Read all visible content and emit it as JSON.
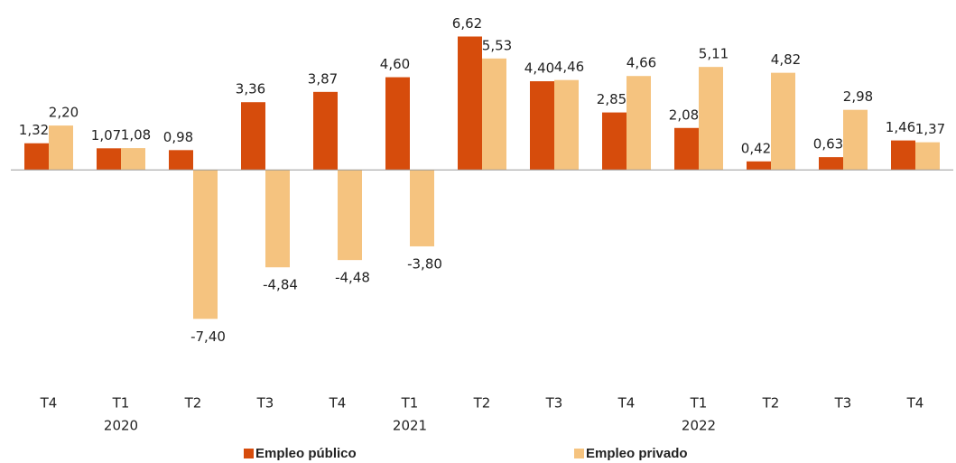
{
  "chart_data": {
    "type": "bar",
    "categories": [
      "T4",
      "T1",
      "T2",
      "T3",
      "T4",
      "T1",
      "T2",
      "T3",
      "T4",
      "T1",
      "T2",
      "T3",
      "T4"
    ],
    "year_labels": [
      null,
      "2020",
      null,
      null,
      null,
      "2021",
      null,
      null,
      null,
      "2022",
      null,
      null,
      null
    ],
    "series": [
      {
        "name": "Empleo público",
        "color": "#d64c0c",
        "values": [
          1.32,
          1.07,
          0.98,
          3.36,
          3.87,
          4.6,
          6.62,
          4.4,
          2.85,
          2.08,
          0.42,
          0.63,
          1.46
        ],
        "value_labels": [
          "1,32",
          "1,07",
          "0,98",
          "3,36",
          "3,87",
          "4,60",
          "6,62",
          "4,40",
          "2,85",
          "2,08",
          "0,42",
          "0,63",
          "1,46"
        ]
      },
      {
        "name": "Empleo privado",
        "color": "#f5c37f",
        "values": [
          2.2,
          1.08,
          -7.4,
          -4.84,
          -4.48,
          -3.8,
          5.53,
          4.46,
          4.66,
          5.11,
          4.82,
          2.98,
          1.37
        ],
        "value_labels": [
          "2,20",
          "1,08",
          "-7,40",
          "-4,84",
          "-4,48",
          "-3,80",
          "5,53",
          "4,46",
          "4,66",
          "5,11",
          "4,82",
          "2,98",
          "1,37"
        ]
      }
    ],
    "ylim": [
      -9,
      7
    ],
    "legend": "bottom"
  }
}
